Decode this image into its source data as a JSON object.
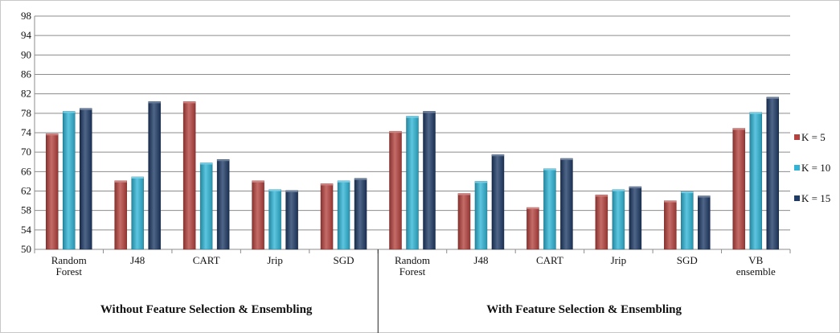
{
  "chart_data": {
    "type": "bar",
    "title": "",
    "xlabel": "",
    "ylabel": "",
    "ylim": [
      50,
      98
    ],
    "yticks": [
      50,
      54,
      58,
      62,
      66,
      70,
      74,
      78,
      82,
      86,
      90,
      94,
      98
    ],
    "grid": true,
    "legend_position": "right",
    "categories": [
      [
        "Random",
        "Forest"
      ],
      [
        "J48"
      ],
      [
        "CART"
      ],
      [
        "Jrip"
      ],
      [
        "SGD"
      ],
      [
        "Random",
        "Forest"
      ],
      [
        "J48"
      ],
      [
        "CART"
      ],
      [
        "Jrip"
      ],
      [
        "SGD"
      ],
      [
        "VB",
        "ensemble"
      ]
    ],
    "groups": [
      {
        "label": "Without  Feature  Selection & Ensembling",
        "count": 5
      },
      {
        "label": "With Feature  Selection & Ensembling",
        "count": 6
      }
    ],
    "series": [
      {
        "name": "K = 5",
        "color": "#b5423e",
        "values": [
          73.8,
          64.1,
          80.4,
          64.1,
          63.5,
          74.3,
          61.5,
          58.6,
          61.2,
          60.0,
          74.9
        ]
      },
      {
        "name": "K = 10",
        "color": "#2fb4d6",
        "values": [
          78.4,
          64.9,
          67.8,
          62.3,
          64.1,
          77.4,
          64.0,
          66.6,
          62.3,
          61.9,
          78.2
        ]
      },
      {
        "name": "K = 15",
        "color": "#1f3b66",
        "values": [
          79.0,
          80.4,
          68.5,
          62.1,
          64.6,
          78.4,
          69.5,
          68.7,
          62.9,
          61.0,
          81.3
        ]
      }
    ]
  }
}
